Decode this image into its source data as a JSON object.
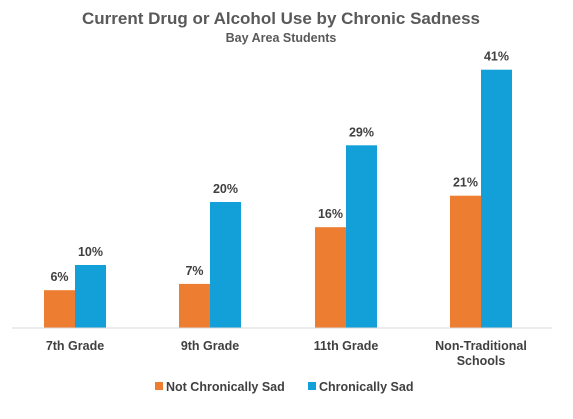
{
  "chart_data": {
    "type": "bar",
    "title": "Current Drug or Alcohol Use by Chronic Sadness",
    "subtitle": "Bay Area Students",
    "categories": [
      [
        "7th Grade"
      ],
      [
        "9th Grade"
      ],
      [
        "11th Grade"
      ],
      [
        "Non-Traditional",
        "Schools"
      ]
    ],
    "series": [
      {
        "name": "Not Chronically Sad",
        "color": "#ED7D31",
        "values": [
          6,
          7,
          16,
          21
        ],
        "labels": [
          "6%",
          "7%",
          "16%",
          "21%"
        ]
      },
      {
        "name": "Chronically Sad",
        "color": "#13A0D8",
        "values": [
          10,
          20,
          29,
          41
        ],
        "labels": [
          "10%",
          "20%",
          "29%",
          "41%"
        ]
      }
    ],
    "ylim": [
      0,
      45
    ],
    "grid": false,
    "legend_position": "bottom",
    "xlabel": "",
    "ylabel": ""
  }
}
